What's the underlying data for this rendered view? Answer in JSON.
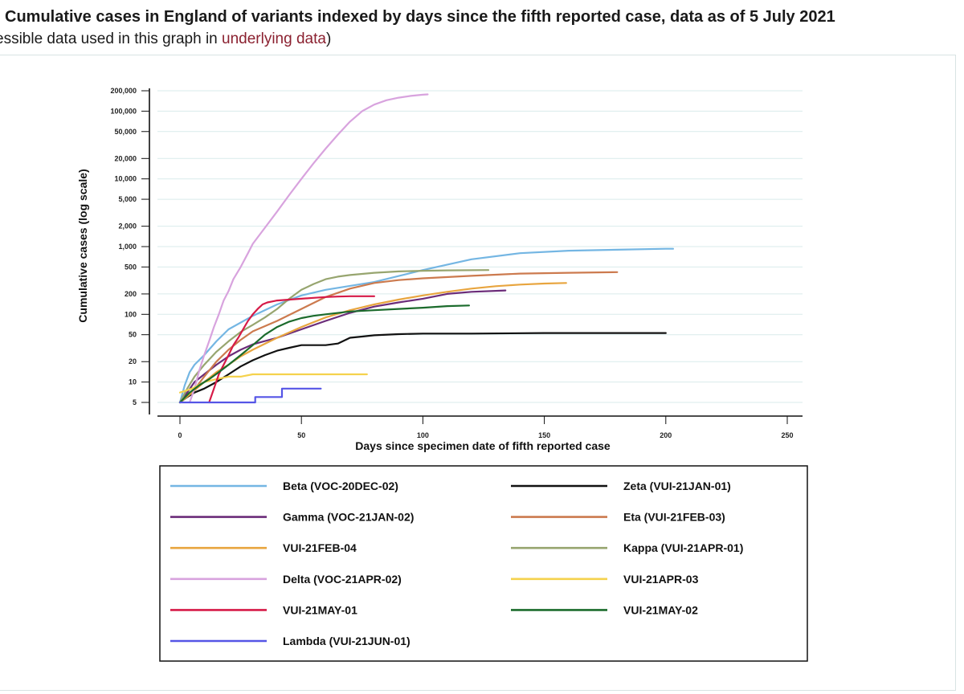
{
  "header": {
    "title": "Cumulative cases in England of variants indexed by days since the fifth reported case, data as of 5 July 2021",
    "subtitle_prefix": "essible data used in this graph in ",
    "subtitle_link": "underlying data",
    "subtitle_suffix": ")"
  },
  "chart_data": {
    "type": "line",
    "title": "Cumulative cases in England of variants indexed by days since the fifth reported case, data as of 5 July 2021",
    "xlabel": "Days since specimen date of fifth reported case",
    "ylabel": "Cumulative cases (log scale)",
    "yscale": "log",
    "xlim": [
      0,
      250
    ],
    "ylim": [
      5,
      200000
    ],
    "x_ticks": [
      0,
      50,
      100,
      150,
      200,
      250
    ],
    "x_tick_labels": [
      "0",
      "50",
      "100",
      "150",
      "200",
      "250"
    ],
    "y_ticks": [
      5,
      10,
      20,
      50,
      100,
      200,
      500,
      1000,
      2000,
      5000,
      10000,
      20000,
      50000,
      100000,
      200000
    ],
    "y_tick_labels": [
      "5",
      "10",
      "20",
      "50",
      "100",
      "200",
      "500",
      "1,000",
      "2,000",
      "5,000",
      "10,000",
      "20,000",
      "50,000",
      "100,000",
      "200,000"
    ],
    "grid": true,
    "legend_position": "bottom",
    "series": [
      {
        "name": "Beta (VOC-20DEC-02)",
        "color": "#74b6e3",
        "x": [
          0,
          2,
          4,
          6,
          10,
          15,
          20,
          30,
          40,
          50,
          60,
          80,
          100,
          120,
          140,
          160,
          180,
          200,
          203
        ],
        "y": [
          5,
          9,
          14,
          18,
          25,
          40,
          60,
          95,
          140,
          190,
          230,
          300,
          450,
          650,
          800,
          870,
          900,
          930,
          930
        ]
      },
      {
        "name": "Zeta (VUI-21JAN-01)",
        "color": "#111111",
        "x": [
          0,
          3,
          6,
          10,
          15,
          20,
          25,
          30,
          35,
          40,
          45,
          50,
          55,
          60,
          65,
          70,
          75,
          80,
          90,
          100,
          120,
          150,
          200
        ],
        "y": [
          5,
          6,
          7,
          8,
          10,
          13,
          17,
          21,
          25,
          29,
          32,
          35,
          35,
          35,
          37,
          45,
          47,
          49,
          51,
          52,
          52,
          53,
          53
        ]
      },
      {
        "name": "Gamma (VOC-21JAN-02)",
        "color": "#6b2c79",
        "x": [
          0,
          3,
          6,
          10,
          15,
          20,
          25,
          30,
          40,
          50,
          60,
          70,
          80,
          90,
          100,
          110,
          120,
          134
        ],
        "y": [
          5,
          7,
          10,
          13,
          18,
          24,
          30,
          36,
          45,
          60,
          80,
          105,
          130,
          150,
          170,
          200,
          215,
          225
        ]
      },
      {
        "name": "Eta (VUI-21FEB-03)",
        "color": "#cc7a4e",
        "x": [
          0,
          5,
          10,
          15,
          20,
          25,
          30,
          40,
          50,
          60,
          70,
          80,
          90,
          100,
          120,
          140,
          160,
          180
        ],
        "y": [
          5,
          7,
          12,
          20,
          30,
          42,
          56,
          80,
          120,
          180,
          240,
          290,
          320,
          340,
          370,
          400,
          410,
          420
        ]
      },
      {
        "name": "VUI-21FEB-04",
        "color": "#e8a53f",
        "x": [
          0,
          5,
          10,
          15,
          20,
          25,
          30,
          40,
          50,
          60,
          70,
          80,
          90,
          100,
          110,
          120,
          130,
          140,
          150,
          159
        ],
        "y": [
          5,
          7,
          10,
          14,
          18,
          24,
          30,
          45,
          65,
          90,
          115,
          140,
          165,
          190,
          215,
          240,
          260,
          275,
          285,
          290
        ]
      },
      {
        "name": "Kappa (VUI-21APR-01)",
        "color": "#97a56f",
        "x": [
          0,
          3,
          6,
          10,
          15,
          20,
          25,
          30,
          35,
          40,
          45,
          50,
          55,
          60,
          65,
          70,
          80,
          90,
          100,
          110,
          127
        ],
        "y": [
          5,
          8,
          12,
          18,
          28,
          40,
          55,
          70,
          90,
          120,
          170,
          230,
          280,
          330,
          360,
          380,
          410,
          430,
          440,
          445,
          450
        ]
      },
      {
        "name": "Delta (VOC-21APR-02)",
        "color": "#d8a3de",
        "x": [
          4,
          6,
          8,
          10,
          12,
          14,
          16,
          18,
          20,
          22,
          25,
          28,
          30,
          35,
          40,
          45,
          50,
          55,
          60,
          65,
          70,
          75,
          80,
          85,
          90,
          95,
          100,
          102
        ],
        "y": [
          5,
          8,
          15,
          25,
          40,
          65,
          100,
          160,
          220,
          330,
          500,
          800,
          1100,
          1900,
          3300,
          5800,
          10000,
          17000,
          28000,
          45000,
          70000,
          100000,
          125000,
          145000,
          158000,
          168000,
          175000,
          177000
        ]
      },
      {
        "name": "VUI-21APR-03",
        "color": "#f5d24d",
        "x": [
          0,
          5,
          10,
          15,
          20,
          25,
          30,
          40,
          50,
          60,
          70,
          77
        ],
        "y": [
          7,
          8,
          10,
          11,
          12,
          12,
          13,
          13,
          13,
          13,
          13,
          13
        ]
      },
      {
        "name": "VUI-21MAY-01",
        "color": "#d61a47",
        "x": [
          12,
          14,
          16,
          18,
          20,
          22,
          24,
          26,
          28,
          30,
          32,
          34,
          36,
          38,
          40,
          45,
          50,
          55,
          60,
          65,
          70,
          75,
          80
        ],
        "y": [
          5,
          8,
          13,
          18,
          25,
          35,
          45,
          60,
          80,
          100,
          120,
          140,
          150,
          155,
          160,
          165,
          170,
          175,
          180,
          183,
          185,
          185,
          185
        ]
      },
      {
        "name": "VUI-21MAY-02",
        "color": "#1b6b2c",
        "x": [
          0,
          4,
          8,
          12,
          16,
          20,
          25,
          30,
          35,
          40,
          45,
          50,
          55,
          60,
          70,
          80,
          90,
          100,
          110,
          119
        ],
        "y": [
          5,
          7,
          9,
          11,
          14,
          18,
          25,
          35,
          50,
          65,
          78,
          88,
          95,
          100,
          110,
          115,
          120,
          125,
          132,
          135
        ]
      },
      {
        "name": "Lambda (VUI-21JUN-01)",
        "color": "#5555e6",
        "x": [
          0,
          10,
          20,
          31,
          31,
          42,
          42,
          58
        ],
        "y": [
          5,
          5,
          5,
          5,
          6,
          6,
          8,
          8
        ]
      }
    ]
  }
}
